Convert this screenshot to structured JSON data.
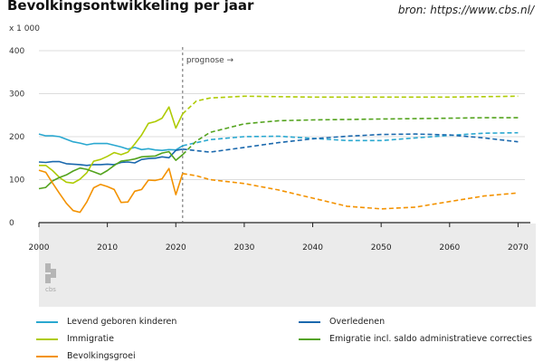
{
  "header": {
    "title": "Bevolkingsontwikkeling per jaar",
    "source": "bron: https://www.cbs.nl/"
  },
  "chart_data": {
    "type": "line",
    "title": "Bevolkingsontwikkeling per jaar",
    "ylabel": "x 1 000",
    "xlabel": "",
    "xlim": [
      2000,
      2071
    ],
    "ylim": [
      0,
      400
    ],
    "yticks": [
      0,
      100,
      200,
      300,
      400
    ],
    "xticks": [
      2000,
      2010,
      2020,
      2030,
      2040,
      2050,
      2060,
      2070
    ],
    "grid": true,
    "legend_position": "bottom",
    "forecast_start": 2021,
    "forecast_label": "prognose →",
    "logo_text": "cbs",
    "series": [
      {
        "name": "Levend geboren kinderen",
        "color": "#2aa8d0",
        "historical": {
          "x": [
            2000,
            2001,
            2002,
            2003,
            2004,
            2005,
            2006,
            2007,
            2008,
            2009,
            2010,
            2011,
            2012,
            2013,
            2014,
            2015,
            2016,
            2017,
            2018,
            2019,
            2020,
            2021
          ],
          "y": [
            206,
            202,
            202,
            200,
            194,
            188,
            185,
            181,
            184,
            184,
            184,
            180,
            176,
            171,
            175,
            170,
            172,
            169,
            168,
            170,
            169,
            179
          ]
        },
        "forecast": {
          "x": [
            2021,
            2025,
            2030,
            2035,
            2040,
            2045,
            2050,
            2055,
            2060,
            2065,
            2070
          ],
          "y": [
            179,
            193,
            200,
            201,
            196,
            191,
            191,
            197,
            203,
            208,
            209
          ]
        }
      },
      {
        "name": "Overledenen",
        "color": "#1a68ad",
        "historical": {
          "x": [
            2000,
            2001,
            2002,
            2003,
            2004,
            2005,
            2006,
            2007,
            2008,
            2009,
            2010,
            2011,
            2012,
            2013,
            2014,
            2015,
            2016,
            2017,
            2018,
            2019,
            2020,
            2021
          ],
          "y": [
            141,
            140,
            142,
            142,
            137,
            136,
            135,
            133,
            135,
            135,
            136,
            135,
            140,
            141,
            139,
            147,
            149,
            150,
            153,
            151,
            168,
            171
          ]
        },
        "forecast": {
          "x": [
            2021,
            2025,
            2030,
            2035,
            2040,
            2045,
            2050,
            2055,
            2060,
            2065,
            2070
          ],
          "y": [
            171,
            164,
            175,
            186,
            195,
            201,
            205,
            206,
            204,
            197,
            188
          ]
        }
      },
      {
        "name": "Immigratie",
        "color": "#afcb05",
        "historical": {
          "x": [
            2000,
            2001,
            2002,
            2003,
            2004,
            2005,
            2006,
            2007,
            2008,
            2009,
            2010,
            2011,
            2012,
            2013,
            2014,
            2015,
            2016,
            2017,
            2018,
            2019,
            2020,
            2021
          ],
          "y": [
            133,
            133,
            121,
            105,
            94,
            92,
            101,
            116,
            143,
            147,
            154,
            163,
            158,
            164,
            183,
            204,
            231,
            235,
            243,
            269,
            220,
            253
          ]
        },
        "forecast": {
          "x": [
            2021,
            2023,
            2025,
            2030,
            2035,
            2040,
            2045,
            2050,
            2055,
            2060,
            2065,
            2070
          ],
          "y": [
            253,
            283,
            290,
            294,
            293,
            292,
            292,
            292,
            292,
            292,
            293,
            294
          ]
        }
      },
      {
        "name": "Emigratie incl. saldo administratieve correcties",
        "color": "#53a31d",
        "historical": {
          "x": [
            2000,
            2001,
            2002,
            2003,
            2004,
            2005,
            2006,
            2007,
            2008,
            2009,
            2010,
            2011,
            2012,
            2013,
            2014,
            2015,
            2016,
            2017,
            2018,
            2019,
            2020,
            2021
          ],
          "y": [
            79,
            82,
            97,
            105,
            111,
            120,
            127,
            124,
            118,
            112,
            121,
            133,
            143,
            145,
            148,
            153,
            154,
            155,
            162,
            165,
            145,
            158
          ]
        },
        "forecast": {
          "x": [
            2021,
            2023,
            2025,
            2030,
            2035,
            2040,
            2045,
            2050,
            2055,
            2060,
            2065,
            2070
          ],
          "y": [
            158,
            190,
            210,
            230,
            237,
            239,
            240,
            241,
            242,
            243,
            244,
            244
          ]
        }
      },
      {
        "name": "Bevolkingsgroei",
        "color": "#f39200",
        "historical": {
          "x": [
            2000,
            2001,
            2002,
            2003,
            2004,
            2005,
            2006,
            2007,
            2008,
            2009,
            2010,
            2011,
            2012,
            2013,
            2014,
            2015,
            2016,
            2017,
            2018,
            2019,
            2020,
            2021
          ],
          "y": [
            122,
            117,
            92,
            68,
            45,
            28,
            24,
            48,
            81,
            89,
            84,
            77,
            47,
            48,
            73,
            77,
            99,
            98,
            102,
            126,
            65,
            114
          ]
        },
        "forecast": {
          "x": [
            2021,
            2023,
            2025,
            2030,
            2035,
            2040,
            2045,
            2050,
            2055,
            2060,
            2065,
            2070
          ],
          "y": [
            114,
            109,
            100,
            91,
            76,
            57,
            38,
            32,
            36,
            49,
            62,
            69
          ]
        }
      }
    ]
  }
}
